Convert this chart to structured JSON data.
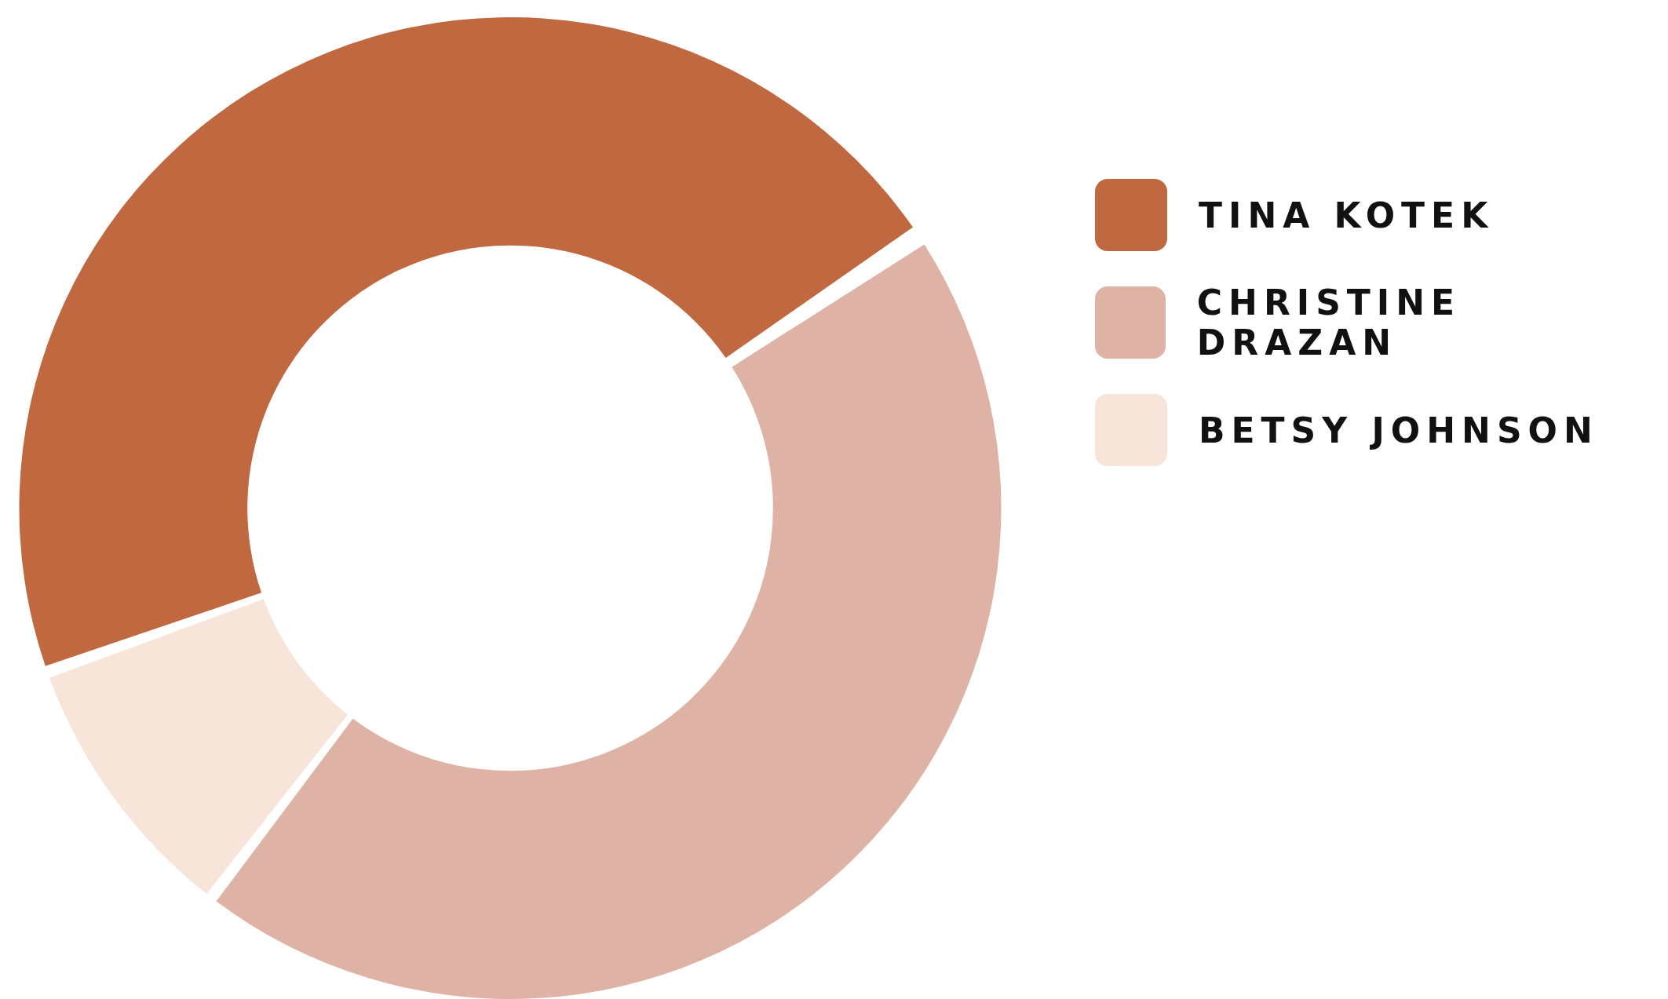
{
  "chart_data": {
    "type": "donut",
    "categories": [
      "TINA KOTEK",
      "CHRISTINE DRAZAN",
      "BETSY JOHNSON"
    ],
    "values": [
      46.2,
      44.9,
      8.9
    ],
    "colors": [
      "#c0683f",
      "#deb3a6",
      "#f7e5d9"
    ],
    "legend": "top right"
  }
}
